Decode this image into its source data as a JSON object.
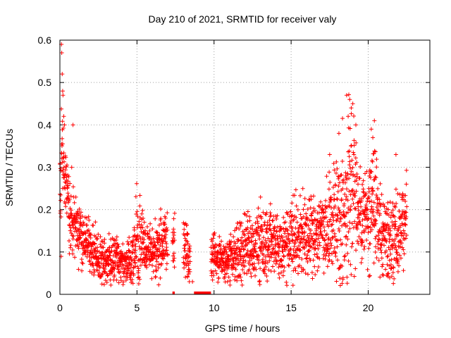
{
  "chart_data": {
    "type": "scatter",
    "title": "Day 210 of 2021, SRMTID for receiver valy",
    "xlabel": "GPS time / hours",
    "ylabel": "SRMTID / TECUs",
    "xlim": [
      0,
      24
    ],
    "ylim": [
      0,
      0.6
    ],
    "x_ticks": [
      0,
      5,
      10,
      15,
      20
    ],
    "x_tick_labels": [
      "0",
      "5",
      "10",
      "15",
      "20"
    ],
    "y_ticks": [
      0,
      0.1,
      0.2,
      0.3,
      0.4,
      0.5,
      0.6
    ],
    "y_tick_labels": [
      "0",
      "0.1",
      "0.2",
      "0.3",
      "0.4",
      "0.5",
      "0.6"
    ],
    "grid": true,
    "marker": "plus",
    "color": "#ff0000",
    "series": [
      {
        "name": "SRMTID",
        "description": "scatter envelope sampled from the plot",
        "x": [
          0.0,
          0.05,
          0.1,
          0.15,
          0.2,
          0.25,
          0.3,
          0.4,
          0.5,
          0.6,
          0.7,
          0.8,
          0.9,
          1.0,
          1.2,
          1.4,
          1.6,
          1.8,
          2.0,
          2.3,
          2.6,
          3.0,
          3.4,
          3.8,
          4.2,
          4.6,
          4.8,
          5.0,
          5.2,
          5.4,
          5.6,
          6.0,
          6.4,
          6.8,
          7.2,
          7.6,
          8.0,
          8.2,
          8.4,
          9.8,
          10.0,
          10.4,
          10.8,
          11.2,
          11.6,
          12.0,
          12.4,
          12.8,
          13.2,
          13.6,
          14.0,
          14.4,
          14.8,
          15.2,
          15.6,
          16.0,
          16.4,
          16.8,
          17.2,
          17.6,
          18.0,
          18.4,
          18.8,
          19.0,
          19.2,
          19.6,
          20.0,
          20.2,
          20.4,
          20.8,
          21.2,
          21.6,
          22.0,
          22.4
        ],
        "y_center": [
          0.25,
          0.26,
          0.28,
          0.3,
          0.31,
          0.3,
          0.28,
          0.26,
          0.23,
          0.2,
          0.19,
          0.18,
          0.17,
          0.16,
          0.15,
          0.14,
          0.14,
          0.13,
          0.11,
          0.1,
          0.09,
          0.08,
          0.08,
          0.08,
          0.07,
          0.08,
          0.1,
          0.15,
          0.14,
          0.12,
          0.11,
          0.1,
          0.11,
          0.12,
          0.13,
          0.12,
          0.11,
          0.1,
          0.09,
          0.09,
          0.09,
          0.08,
          0.08,
          0.09,
          0.1,
          0.11,
          0.11,
          0.12,
          0.12,
          0.13,
          0.12,
          0.11,
          0.12,
          0.13,
          0.13,
          0.14,
          0.14,
          0.15,
          0.16,
          0.16,
          0.18,
          0.19,
          0.22,
          0.23,
          0.22,
          0.2,
          0.19,
          0.22,
          0.2,
          0.16,
          0.13,
          0.12,
          0.15,
          0.19
        ],
        "y_spread": [
          0.05,
          0.1,
          0.12,
          0.1,
          0.07,
          0.05,
          0.05,
          0.05,
          0.05,
          0.06,
          0.07,
          0.06,
          0.05,
          0.05,
          0.05,
          0.05,
          0.05,
          0.04,
          0.04,
          0.04,
          0.04,
          0.04,
          0.04,
          0.04,
          0.03,
          0.04,
          0.06,
          0.1,
          0.07,
          0.05,
          0.05,
          0.05,
          0.05,
          0.05,
          0.05,
          0.05,
          0.05,
          0.05,
          0.05,
          0.04,
          0.04,
          0.04,
          0.04,
          0.04,
          0.05,
          0.06,
          0.05,
          0.06,
          0.06,
          0.06,
          0.05,
          0.05,
          0.06,
          0.06,
          0.06,
          0.07,
          0.06,
          0.06,
          0.07,
          0.08,
          0.1,
          0.12,
          0.15,
          0.14,
          0.1,
          0.07,
          0.08,
          0.12,
          0.08,
          0.07,
          0.06,
          0.07,
          0.08,
          0.07
        ]
      }
    ],
    "zero_segments": [
      [
        7.3,
        7.45
      ],
      [
        8.7,
        9.8
      ]
    ],
    "x_range_data": [
      0,
      22.5
    ]
  }
}
